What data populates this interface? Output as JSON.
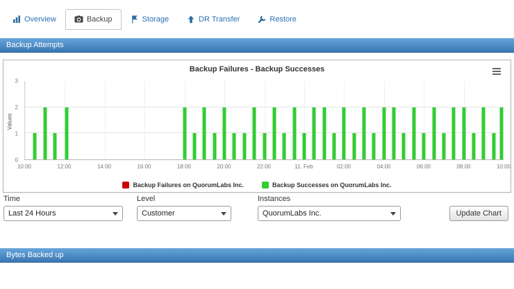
{
  "tabs": [
    {
      "label": "Overview"
    },
    {
      "label": "Backup"
    },
    {
      "label": "Storage"
    },
    {
      "label": "DR Transfer"
    },
    {
      "label": "Restore"
    }
  ],
  "section_headers": {
    "backup_attempts": "Backup Attempts",
    "bytes_backed_up": "Bytes Backed up"
  },
  "chart_data": {
    "type": "bar",
    "title": "Backup Failures - Backup Successes",
    "ylabel": "Values",
    "ylim": [
      0,
      3
    ],
    "yticks": [
      0,
      1,
      2,
      3
    ],
    "x_range_hours": 24,
    "xticklabels": [
      "10:00",
      "12:00",
      "14:00",
      "16:00",
      "18:00",
      "20:00",
      "22:00",
      "11. Feb",
      "02:00",
      "04:00",
      "06:00",
      "08:00",
      "10:00"
    ],
    "grid": true,
    "legend_position": "bottom",
    "series": [
      {
        "name": "Backup Failures on QuorumLabs Inc.",
        "color": "#cc0000",
        "points": []
      },
      {
        "name": "Backup Successes on QuorumLabs Inc.",
        "color": "#33cc33",
        "points": [
          [
            0.5,
            1
          ],
          [
            1,
            2
          ],
          [
            1.5,
            1
          ],
          [
            2.1,
            2
          ],
          [
            8,
            2
          ],
          [
            8.5,
            1
          ],
          [
            9,
            2
          ],
          [
            9.5,
            1
          ],
          [
            10,
            2
          ],
          [
            10.5,
            1
          ],
          [
            11,
            1
          ],
          [
            11.5,
            2
          ],
          [
            12,
            1
          ],
          [
            12.5,
            2
          ],
          [
            13,
            1
          ],
          [
            13.5,
            2
          ],
          [
            14,
            1
          ],
          [
            14.5,
            2
          ],
          [
            15,
            2
          ],
          [
            15.5,
            1
          ],
          [
            16,
            2
          ],
          [
            16.5,
            1
          ],
          [
            17,
            2
          ],
          [
            17.5,
            1
          ],
          [
            18,
            2
          ],
          [
            18.5,
            2
          ],
          [
            19,
            1
          ],
          [
            19.5,
            2
          ],
          [
            20,
            1
          ],
          [
            20.5,
            2
          ],
          [
            21,
            1
          ],
          [
            21.5,
            2
          ],
          [
            22,
            2
          ],
          [
            22.5,
            1
          ],
          [
            23,
            2
          ],
          [
            23.5,
            1
          ],
          [
            23.9,
            2
          ]
        ]
      }
    ]
  },
  "controls": {
    "time_label": "Time",
    "time_value": "Last 24 Hours",
    "level_label": "Level",
    "level_value": "Customer",
    "instances_label": "Instances",
    "instances_value": "QuorumLabs Inc.",
    "update_button": "Update Chart"
  }
}
